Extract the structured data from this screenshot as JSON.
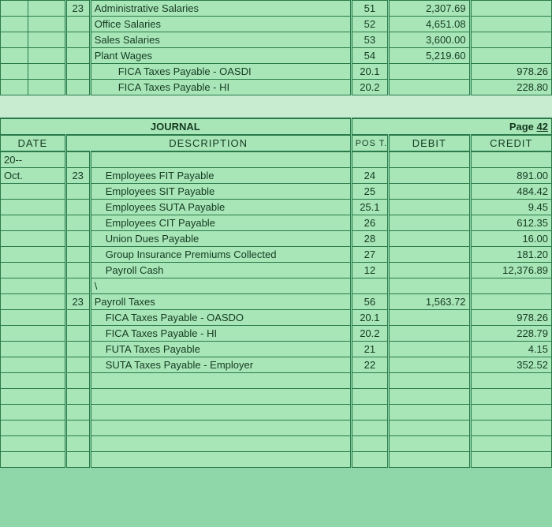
{
  "colors": {
    "background": "#8fd6a8",
    "cell_bg": "#a8e6b8",
    "border": "#2a7a4a",
    "text": "#153a20",
    "spacer_bg": "#c8ecd0"
  },
  "top_section": {
    "day": "23",
    "rows": [
      {
        "desc": "Administrative Salaries",
        "indent": 0,
        "post": "51",
        "debit": "2,307.69",
        "credit": ""
      },
      {
        "desc": "Office Salaries",
        "indent": 0,
        "post": "52",
        "debit": "4,651.08",
        "credit": ""
      },
      {
        "desc": "Sales Salaries",
        "indent": 0,
        "post": "53",
        "debit": "3,600.00",
        "credit": ""
      },
      {
        "desc": "Plant Wages",
        "indent": 0,
        "post": "54",
        "debit": "5,219.60",
        "credit": ""
      },
      {
        "desc": "FICA Taxes Payable - OASDI",
        "indent": 1,
        "post": "20.1",
        "debit": "",
        "credit": "978.26"
      },
      {
        "desc": "FICA Taxes Payable - HI",
        "indent": 1,
        "post": "20.2",
        "debit": "",
        "credit": "228.80"
      }
    ]
  },
  "journal": {
    "title": "JOURNAL",
    "page_label": "Page",
    "page_number": "42",
    "headers": {
      "date": "DATE",
      "description": "DESCRIPTION",
      "post": "POS T.",
      "debit": "DEBIT",
      "credit": "CREDIT"
    },
    "year_row": "20--",
    "month": "Oct.",
    "entries": [
      {
        "month": "Oct.",
        "day": "23",
        "desc": "Employees FIT Payable",
        "indent": 1,
        "post": "24",
        "debit": "",
        "credit": "891.00"
      },
      {
        "month": "",
        "day": "",
        "desc": "Employees SIT Payable",
        "indent": 1,
        "post": "25",
        "debit": "",
        "credit": "484.42"
      },
      {
        "month": "",
        "day": "",
        "desc": "Employees SUTA Payable",
        "indent": 1,
        "post": "25.1",
        "debit": "",
        "credit": "9.45"
      },
      {
        "month": "",
        "day": "",
        "desc": "Employees CIT Payable",
        "indent": 1,
        "post": "26",
        "debit": "",
        "credit": "612.35"
      },
      {
        "month": "",
        "day": "",
        "desc": "Union Dues Payable",
        "indent": 1,
        "post": "28",
        "debit": "",
        "credit": "16.00"
      },
      {
        "month": "",
        "day": "",
        "desc": "Group Insurance Premiums Collected",
        "indent": 1,
        "post": "27",
        "debit": "",
        "credit": "181.20"
      },
      {
        "month": "",
        "day": "",
        "desc": "Payroll Cash",
        "indent": 1,
        "post": "12",
        "debit": "",
        "credit": "12,376.89"
      },
      {
        "month": "",
        "day": "",
        "desc": "\\",
        "indent": 0,
        "post": "",
        "debit": "",
        "credit": ""
      },
      {
        "month": "",
        "day": "23",
        "desc": "Payroll Taxes",
        "indent": 0,
        "post": "56",
        "debit": "1,563.72",
        "credit": ""
      },
      {
        "month": "",
        "day": "",
        "desc": "FICA Taxes Payable - OASDO",
        "indent": 1,
        "post": "20.1",
        "debit": "",
        "credit": "978.26"
      },
      {
        "month": "",
        "day": "",
        "desc": "FICA Taxes Payable - HI",
        "indent": 1,
        "post": "20.2",
        "debit": "",
        "credit": "228.79"
      },
      {
        "month": "",
        "day": "",
        "desc": "FUTA Taxes Payable",
        "indent": 1,
        "post": "21",
        "debit": "",
        "credit": "4.15"
      },
      {
        "month": "",
        "day": "",
        "desc": "SUTA Taxes Payable - Employer",
        "indent": 1,
        "post": "22",
        "debit": "",
        "credit": "352.52"
      }
    ],
    "blank_rows_after": 6
  }
}
